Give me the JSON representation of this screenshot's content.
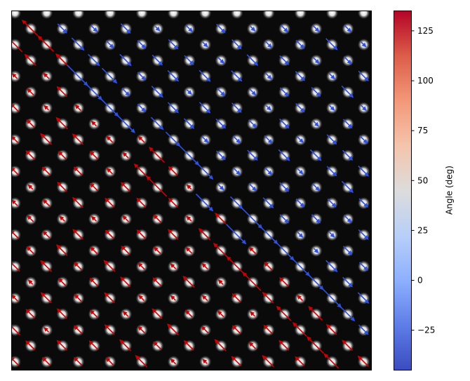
{
  "chart_data": {
    "type": "heatmap",
    "title": "",
    "description_of_marks": "",
    "image": {
      "background_color": "#0a0a0a",
      "lattice": {
        "grid_min": -12,
        "grid_max": 12,
        "octagon_cut": 11
      }
    },
    "arrow_field": {
      "red_angle_deg": 135,
      "blue_angle_deg": -45,
      "regions": [
        {
          "name": "upper-right",
          "color_angle": -45
        },
        {
          "name": "lower-left",
          "color_angle": 135
        }
      ]
    },
    "colorbar": {
      "label": "Angle (deg)",
      "vmin": -45,
      "vmax": 135,
      "ticks": [
        -25,
        0,
        25,
        50,
        75,
        100,
        125
      ],
      "tick_labels": [
        "−25",
        "0",
        "25",
        "50",
        "75",
        "100",
        "125"
      ],
      "colormap": "coolwarm",
      "colors": {
        "low": "#3b4cc0",
        "mid": "#dddddd",
        "high": "#b40426"
      }
    }
  }
}
